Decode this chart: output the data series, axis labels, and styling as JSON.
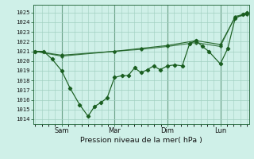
{
  "xlabel": "Pression niveau de la mer( hPa )",
  "bg_color": "#cff0e8",
  "grid_color": "#a0cfc0",
  "line_color": "#1a5e20",
  "ylim": [
    1013.5,
    1025.8
  ],
  "yticks": [
    1014,
    1015,
    1016,
    1017,
    1018,
    1019,
    1020,
    1021,
    1022,
    1023,
    1024,
    1025
  ],
  "vline_positions": [
    0.125,
    0.375,
    0.625,
    0.875
  ],
  "day_labels": [
    "Sam",
    "Mar",
    "Dim",
    "Lun"
  ],
  "series1_x": [
    0.0,
    0.04,
    0.08,
    0.125,
    0.165,
    0.21,
    0.25,
    0.28,
    0.31,
    0.34,
    0.375,
    0.41,
    0.44,
    0.47,
    0.5,
    0.53,
    0.56,
    0.59,
    0.625,
    0.66,
    0.695,
    0.73,
    0.76,
    0.79,
    0.82,
    0.875,
    0.91,
    0.945,
    0.98,
    1.0
  ],
  "series1_y": [
    1021.0,
    1021.0,
    1020.2,
    1019.0,
    1017.2,
    1015.5,
    1014.3,
    1015.3,
    1015.7,
    1016.2,
    1018.3,
    1018.5,
    1018.5,
    1019.3,
    1018.8,
    1019.1,
    1019.5,
    1019.1,
    1019.5,
    1019.6,
    1019.5,
    1021.8,
    1022.1,
    1021.5,
    1021.0,
    1019.7,
    1021.3,
    1024.4,
    1024.8,
    1025.0
  ],
  "series2_x": [
    0.0,
    0.125,
    0.375,
    0.5,
    0.625,
    0.76,
    0.875,
    0.945,
    1.0
  ],
  "series2_y": [
    1021.0,
    1020.6,
    1021.0,
    1021.3,
    1021.6,
    1022.1,
    1021.7,
    1024.5,
    1024.8
  ],
  "series3_x": [
    0.0,
    0.125,
    0.375,
    0.5,
    0.625,
    0.76,
    0.875,
    0.945,
    1.0
  ],
  "series3_y": [
    1021.0,
    1020.5,
    1021.0,
    1021.2,
    1021.5,
    1021.9,
    1021.5,
    1024.6,
    1024.9
  ]
}
